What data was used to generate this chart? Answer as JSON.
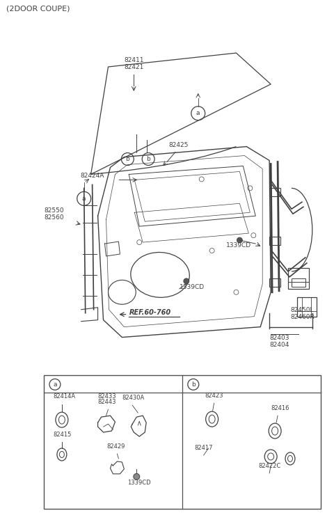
{
  "title": "(2DOOR COUPE)",
  "bg_color": "#ffffff",
  "lc": "#404040",
  "tc": "#404040",
  "fig_width": 4.8,
  "fig_height": 7.37,
  "dpi": 100,
  "labels": {
    "glass": [
      "82411",
      "82421"
    ],
    "b_markers": [
      "b",
      "b"
    ],
    "a_marker_glass": "a",
    "a_marker_door": "a",
    "part_82425": "82425",
    "part_82424A": "82424A",
    "part_82550_82560": [
      "82550",
      "82560"
    ],
    "part_1339cd_1": "1339CD",
    "part_1339cd_2": "1339CD",
    "ref": "REF.60-760",
    "part_82450l_82460r": [
      "82450L",
      "82460R"
    ],
    "part_82403_82404": [
      "82403",
      "82404"
    ],
    "ta_82414A": "82414A",
    "ta_82433": "82433",
    "ta_82443": "82443",
    "ta_82430A": "82430A",
    "ta_82415": "82415",
    "ta_82429": "82429",
    "ta_1339cd": "1339CD",
    "tb_82423": "82423",
    "tb_82416": "82416",
    "tb_82417": "82417",
    "tb_82422C": "82422C"
  }
}
